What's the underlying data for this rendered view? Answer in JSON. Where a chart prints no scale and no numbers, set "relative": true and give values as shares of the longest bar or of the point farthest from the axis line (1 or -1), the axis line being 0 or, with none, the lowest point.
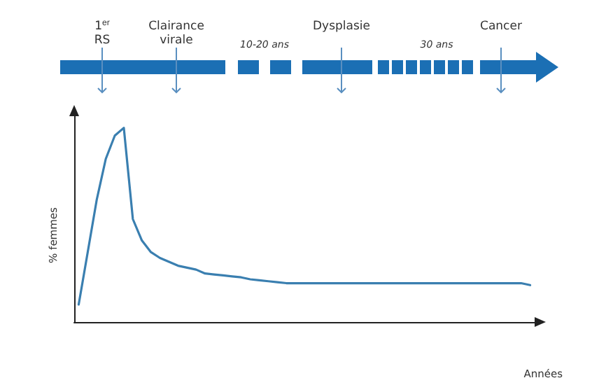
{
  "chart_data": {
    "type": "line",
    "relative": true,
    "xlabel": "Années",
    "ylabel": "% femmes",
    "annotations": [
      "1$^{er}$ RS",
      "Clairance virale",
      "10-20 ans",
      "Dysplasie",
      "30 ans",
      "Cancer"
    ],
    "categories": [
      null,
      null,
      null,
      null,
      null,
      null,
      null,
      null,
      null,
      null,
      null,
      null,
      null,
      null,
      null,
      null,
      null,
      null,
      null,
      null,
      null,
      null,
      null,
      null,
      null,
      null,
      null,
      null,
      null,
      null,
      null,
      null,
      null,
      null,
      null,
      null,
      null,
      null,
      null,
      null,
      null,
      null,
      null,
      null,
      null,
      null,
      null,
      null,
      null,
      null,
      null
    ],
    "grid": false,
    "marker": "none",
    "line_style": "solid",
    "series": [
      {
        "color": "#3a7fb0",
        "values": [
          0.09,
          0.36,
          0.63,
          0.84,
          0.96,
          1,
          0.53,
          0.42,
          0.36,
          0.33,
          0.31,
          0.29,
          0.28,
          0.27,
          0.25,
          0.245,
          0.24,
          0.235,
          0.23,
          0.22,
          0.215,
          0.21,
          0.205,
          0.2,
          0.2,
          0.2,
          0.2,
          0.2,
          0.2,
          0.2,
          0.2,
          0.2,
          0.2,
          0.2,
          0.2,
          0.2,
          0.2,
          0.2,
          0.2,
          0.2,
          0.2,
          0.2,
          0.2,
          0.2,
          0.2,
          0.2,
          0.2,
          0.2,
          0.2,
          0.2,
          0.19
        ]
      }
    ]
  }
}
